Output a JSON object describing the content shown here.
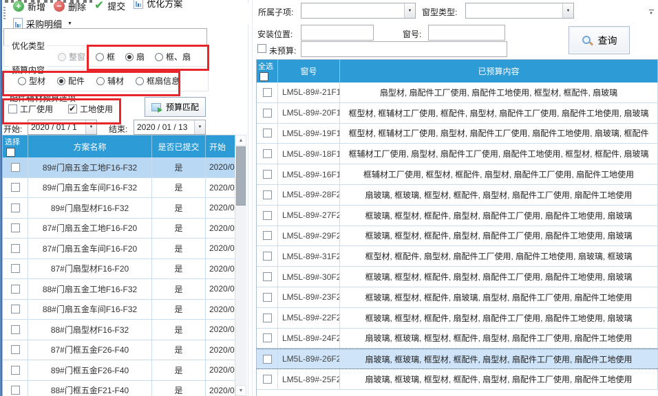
{
  "toolbar": {
    "buttons": [
      {
        "id": "add",
        "label": "新增",
        "icon": "plus-circle"
      },
      {
        "id": "delete",
        "label": "删除",
        "icon": "minus-circle"
      },
      {
        "id": "submit",
        "label": "提交",
        "icon": "check"
      },
      {
        "id": "optimize-plan",
        "label": "优化方案",
        "icon": "report"
      },
      {
        "id": "purchase-detail",
        "label": "采购明细",
        "icon": "report",
        "has_dropdown": true
      }
    ]
  },
  "left_panel": {
    "search_input_value": "",
    "optimize_type": {
      "label": "优化类型",
      "options": [
        {
          "label": "整窗",
          "checked": false,
          "disabled": true
        },
        {
          "label": "框",
          "checked": false
        },
        {
          "label": "扇",
          "checked": true
        },
        {
          "label": "框、扇",
          "checked": false
        }
      ]
    },
    "budget_content": {
      "label": "预算内容",
      "options": [
        {
          "label": "型材",
          "checked": false
        },
        {
          "label": "配件",
          "checked": true
        },
        {
          "label": "辅材",
          "checked": false
        },
        {
          "label": "框扇信息",
          "checked": false
        }
      ]
    },
    "accessory_budget_options": {
      "label": "配件辅材预算选项",
      "checkboxes": [
        {
          "label": "工厂使用",
          "checked": false
        },
        {
          "label": "工地使用",
          "checked": true
        }
      ]
    },
    "budget_match_button": "预算匹配",
    "date_range": {
      "start_label": "开始:",
      "start_value": "2020 / 01 / 1",
      "end_label": "结束:",
      "end_value": "2020 / 01 / 13"
    },
    "plan_table": {
      "headers": {
        "select": "选择",
        "name": "方案名称",
        "submitted": "是否已提交",
        "start": "开始"
      },
      "rows": [
        {
          "name": "89#门扇五金工地F16-F32",
          "submitted": "是",
          "start": "2020/0",
          "selected": true
        },
        {
          "name": "89#门扇五金车间F16-F32",
          "submitted": "是",
          "start": "2020/0"
        },
        {
          "name": "89#门扇型材F16-F32",
          "submitted": "是",
          "start": "2020/0"
        },
        {
          "name": "87#门扇五金工地F16-F20",
          "submitted": "是",
          "start": "2020/0"
        },
        {
          "name": "87#门扇五金车间F16-F20",
          "submitted": "是",
          "start": "2020/0"
        },
        {
          "name": "87#门扇型材F16-F20",
          "submitted": "是",
          "start": "2020/0"
        },
        {
          "name": "88#门扇五金工地F16-F32",
          "submitted": "是",
          "start": "2020/0"
        },
        {
          "name": "88#门扇五金车间F16-F32",
          "submitted": "是",
          "start": "2020/0"
        },
        {
          "name": "88#门扇型材F16-F32",
          "submitted": "是",
          "start": "2020/0"
        },
        {
          "name": "87#门框五金F26-F40",
          "submitted": "是",
          "start": "2020/0"
        },
        {
          "name": "89#门框五金F26-F40",
          "submitted": "是",
          "start": "2020/0"
        },
        {
          "name": "88#门框五金F21-F40",
          "submitted": "是",
          "start": "2020/0"
        }
      ]
    }
  },
  "right_panel": {
    "filters": {
      "sub_item_label": "所属子项:",
      "sub_item_value": "",
      "window_type_label": "窗型类型:",
      "window_type_value": "",
      "install_position_label": "安装位置:",
      "install_position_value": "",
      "window_no_label": "窗号:",
      "window_no_value": "",
      "unbudgeted_label": "未预算:",
      "unbudgeted_checked": false,
      "unbudgeted_value": "",
      "query_button": "查询"
    },
    "window_table": {
      "headers": {
        "select_all": "全选",
        "window_no": "窗号",
        "budgeted_content": "已预算内容"
      },
      "rows": [
        {
          "window_no": "LM5L-89#-21F19",
          "content": "扇型材, 扇配件工厂使用, 扇配件工地使用, 框型材, 框配件, 扇玻璃"
        },
        {
          "window_no": "LM5L-89#-20F18",
          "content": "框型材, 框辅材工厂使用, 框配件, 扇型材, 扇配件工厂使用, 扇配件工地使用, 扇玻璃"
        },
        {
          "window_no": "LM5L-89#-19F17",
          "content": "框型材, 框辅材工厂使用, 扇型材, 扇配件工厂使用, 扇配件工地使用, 扇玻璃, 框配件"
        },
        {
          "window_no": "LM5L-89#-18F16",
          "content": "框辅材工厂使用, 扇型材, 扇配件工厂使用, 扇配件工地使用, 框型材, 框配件, 扇玻璃"
        },
        {
          "window_no": "LM5L-89#-16F15",
          "content": "框辅材工厂使用, 框型材, 框配件, 扇型材, 扇配件工厂使用, 扇配件工地使用"
        },
        {
          "window_no": "LM5L-89#-28F26",
          "content": "扇玻璃, 框玻璃, 框型材, 框配件, 扇型材, 扇配件工厂使用, 扇配件工地使用"
        },
        {
          "window_no": "LM5L-89#-27F25",
          "content": "框玻璃, 框型材, 框配件, 扇型材, 扇配件工厂使用, 扇配件工地使用, 扇玻璃"
        },
        {
          "window_no": "LM5L-89#-29F27",
          "content": "框玻璃, 框型材, 框配件, 扇型材, 扇配件工厂使用, 扇配件工地使用, 扇玻璃"
        },
        {
          "window_no": "LM5L-89#-31F29",
          "content": "框型材, 框配件, 扇型材, 扇配件工厂使用, 扇配件工地使用, 扇玻璃, 框玻璃"
        },
        {
          "window_no": "LM5L-89#-30F28",
          "content": "框玻璃, 框型材, 框配件, 扇型材, 扇配件工厂使用, 扇配件工地使用, 扇玻璃"
        },
        {
          "window_no": "LM5L-89#-23F21",
          "content": "框玻璃, 框型材, 框配件, 扇玻璃, 扇型材, 扇配件工厂使用, 扇配件工地使用"
        },
        {
          "window_no": "LM5L-89#-22F20",
          "content": "框玻璃, 框型材, 框配件, 扇型材, 扇配件工厂使用, 扇配件工地使用, 扇玻璃"
        },
        {
          "window_no": "LM5L-89#-24F22",
          "content": "扇玻璃, 框玻璃, 框型材, 框配件, 扇型材, 扇配件工厂使用, 扇配件工地使用"
        },
        {
          "window_no": "LM5L-89#-26F24",
          "content": "扇玻璃, 框玻璃, 框型材, 框配件, 扇型材, 扇配件工厂使用, 扇配件工地使用",
          "selected": true
        },
        {
          "window_no": "LM5L-89#-25F23",
          "content": "扇玻璃, 框玻璃, 框型材, 框配件, 扇型材, 扇配件工厂使用, 扇配件工地使用"
        }
      ]
    }
  },
  "colors": {
    "table_header_blue": "#2d9bd6",
    "selected_row_left": "#b9d8f4",
    "selected_row_right": "#cfe4f8",
    "annotation_red": "#e8252a",
    "grid_line": "#c9ddef"
  }
}
